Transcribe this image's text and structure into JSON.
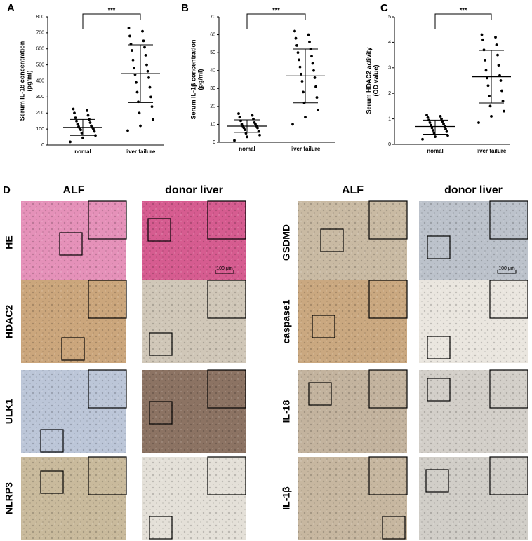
{
  "chart_data": [
    {
      "type": "dot",
      "panel": "A",
      "ylabel": [
        "Serum IL-18 concentration",
        "(pg/ml)"
      ],
      "annotation": "***",
      "categories": [
        "nomal",
        "liver failure"
      ],
      "ylim": [
        0,
        800
      ],
      "yticks": [
        0,
        100,
        200,
        300,
        400,
        500,
        600,
        700,
        800
      ],
      "groups": [
        {
          "values": [
            20,
            45,
            60,
            75,
            85,
            95,
            100,
            105,
            110,
            115,
            120,
            130,
            140,
            150,
            160,
            170,
            185,
            200,
            215,
            225
          ],
          "mean": 110,
          "upper": 160,
          "lower": 60
        },
        {
          "values": [
            90,
            120,
            160,
            200,
            240,
            270,
            300,
            330,
            360,
            390,
            420,
            440,
            460,
            480,
            500,
            530,
            560,
            590,
            610,
            630,
            650,
            680,
            710,
            730
          ],
          "mean": 445,
          "upper": 625,
          "lower": 265
        }
      ]
    },
    {
      "type": "dot",
      "panel": "B",
      "ylabel": [
        "Serum IL-1β concentration",
        "(pg/ml)"
      ],
      "annotation": "***",
      "categories": [
        "nomal",
        "liver failure"
      ],
      "ylim": [
        0,
        70
      ],
      "yticks": [
        0,
        10,
        20,
        30,
        40,
        50,
        60,
        70
      ],
      "groups": [
        {
          "values": [
            1,
            3,
            4,
            5,
            6,
            7,
            8,
            8,
            9,
            9,
            10,
            10,
            11,
            12,
            13,
            14,
            15,
            16
          ],
          "mean": 9,
          "upper": 12.5,
          "lower": 5.5
        },
        {
          "values": [
            10,
            14,
            18,
            22,
            25,
            28,
            31,
            34,
            36,
            38,
            40,
            42,
            44,
            46,
            48,
            50,
            52,
            54,
            56,
            58,
            60,
            62
          ],
          "mean": 37,
          "upper": 52,
          "lower": 22
        }
      ]
    },
    {
      "type": "dot",
      "panel": "C",
      "ylabel": [
        "Serum HDAC2 activity",
        "(OD value)"
      ],
      "annotation": "***",
      "categories": [
        "nomal",
        "liver failure"
      ],
      "ylim": [
        0,
        5
      ],
      "yticks": [
        0,
        1,
        2,
        3,
        4,
        5
      ],
      "groups": [
        {
          "values": [
            0.2,
            0.3,
            0.35,
            0.45,
            0.5,
            0.55,
            0.6,
            0.65,
            0.7,
            0.75,
            0.8,
            0.85,
            0.9,
            0.95,
            1.0,
            1.05,
            1.1,
            1.15
          ],
          "mean": 0.7,
          "upper": 0.95,
          "lower": 0.4
        },
        {
          "values": [
            0.85,
            1.1,
            1.3,
            1.5,
            1.7,
            1.9,
            2.1,
            2.3,
            2.5,
            2.6,
            2.7,
            2.9,
            3.1,
            3.3,
            3.5,
            3.7,
            3.9,
            4.1,
            4.2,
            4.3
          ],
          "mean": 2.65,
          "upper": 3.68,
          "lower": 1.62
        }
      ]
    }
  ],
  "panel_D": {
    "label": "D",
    "columns": [
      "ALF",
      "donor liver",
      "ALF",
      "donor liver"
    ],
    "rows_left": [
      "HE",
      "HDAC2",
      "ULK1",
      "NLRP3"
    ],
    "rows_right": [
      "GSDMD",
      "caspase1",
      "IL-18",
      "IL-1β"
    ],
    "scale_bar": "100 μm"
  }
}
